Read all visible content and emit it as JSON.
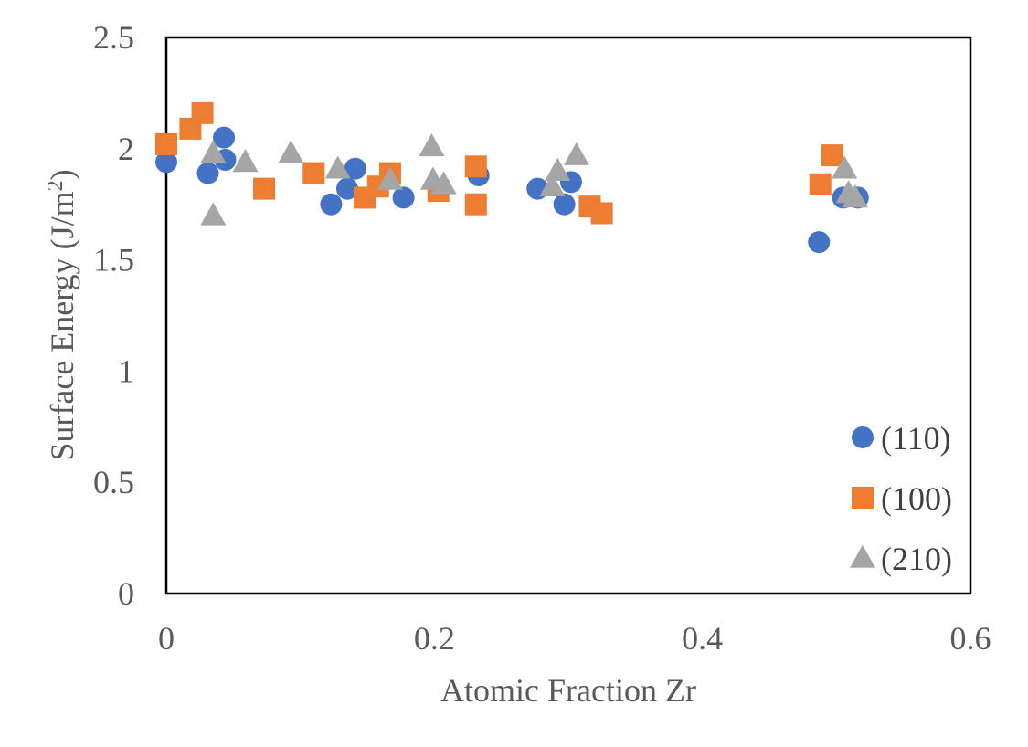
{
  "chart_data": {
    "type": "scatter",
    "title": "",
    "xlabel": "Atomic Fraction Zr",
    "ylabel": {
      "main": "Surface Energy (J/m",
      "sup": "2",
      "tail": ")"
    },
    "xlim": [
      0,
      0.6
    ],
    "ylim": [
      0,
      2.5
    ],
    "x_ticks": [
      "0",
      "0.2",
      "0.4",
      "0.6"
    ],
    "y_ticks": [
      "0",
      "0.5",
      "1",
      "1.5",
      "2",
      "2.5"
    ],
    "grid": false,
    "legend_position": "bottom-right inside",
    "series": [
      {
        "name": "(110)",
        "marker": "circle",
        "color": "#4472C4",
        "points": [
          [
            0.0,
            1.94
          ],
          [
            0.031,
            1.89
          ],
          [
            0.043,
            2.05
          ],
          [
            0.044,
            1.95
          ],
          [
            0.123,
            1.75
          ],
          [
            0.135,
            1.82
          ],
          [
            0.141,
            1.91
          ],
          [
            0.177,
            1.78
          ],
          [
            0.233,
            1.88
          ],
          [
            0.277,
            1.82
          ],
          [
            0.297,
            1.75
          ],
          [
            0.302,
            1.85
          ],
          [
            0.487,
            1.58
          ],
          [
            0.505,
            1.78
          ],
          [
            0.516,
            1.78
          ]
        ]
      },
      {
        "name": "(100)",
        "marker": "square",
        "color": "#ED7D31",
        "points": [
          [
            0.0,
            2.02
          ],
          [
            0.018,
            2.09
          ],
          [
            0.027,
            2.16
          ],
          [
            0.073,
            1.82
          ],
          [
            0.11,
            1.89
          ],
          [
            0.148,
            1.78
          ],
          [
            0.158,
            1.83
          ],
          [
            0.167,
            1.89
          ],
          [
            0.203,
            1.81
          ],
          [
            0.231,
            1.92
          ],
          [
            0.231,
            1.75
          ],
          [
            0.316,
            1.74
          ],
          [
            0.325,
            1.71
          ],
          [
            0.488,
            1.84
          ],
          [
            0.497,
            1.97
          ]
        ]
      },
      {
        "name": "(210)",
        "marker": "triangle",
        "color": "#A5A5A5",
        "points": [
          [
            0.035,
            1.98
          ],
          [
            0.035,
            1.7
          ],
          [
            0.059,
            1.94
          ],
          [
            0.093,
            1.98
          ],
          [
            0.128,
            1.91
          ],
          [
            0.167,
            1.86
          ],
          [
            0.198,
            2.01
          ],
          [
            0.199,
            1.86
          ],
          [
            0.207,
            1.84
          ],
          [
            0.288,
            1.83
          ],
          [
            0.292,
            1.9
          ],
          [
            0.306,
            1.97
          ],
          [
            0.506,
            1.91
          ],
          [
            0.509,
            1.8
          ],
          [
            0.514,
            1.78
          ]
        ]
      }
    ]
  }
}
